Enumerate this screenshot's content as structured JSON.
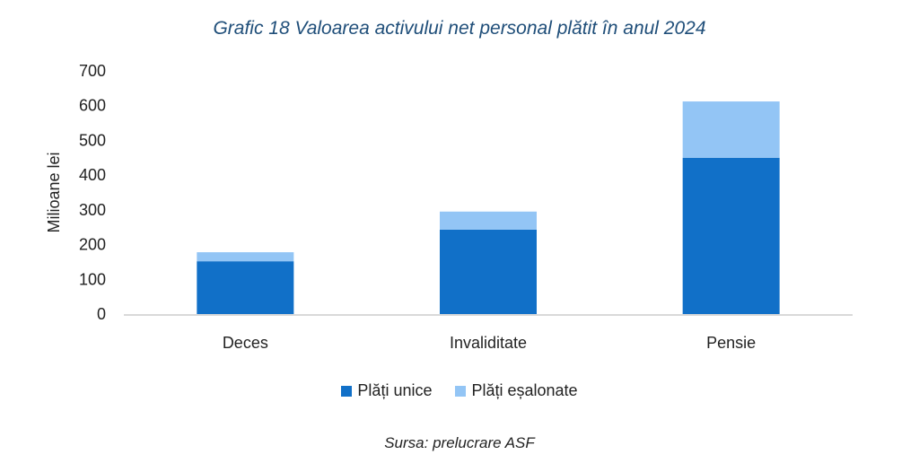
{
  "chart_data": {
    "type": "bar",
    "stacked": true,
    "title": "Grafic 18 Valoarea activului net personal plătit în anul 2024",
    "xlabel": "",
    "ylabel": "Milioane lei",
    "ylim": [
      0,
      700
    ],
    "yticks": [
      0,
      100,
      200,
      300,
      400,
      500,
      600,
      700
    ],
    "categories": [
      "Deces",
      "Invaliditate",
      "Pensie"
    ],
    "series": [
      {
        "name": "Plăți unice",
        "color": "#1170c8",
        "values": [
          152,
          243,
          450
        ]
      },
      {
        "name": "Plăți eșalonate",
        "color": "#93c5f5",
        "values": [
          26,
          52,
          162
        ]
      }
    ],
    "legend_position": "bottom",
    "grid": false,
    "source": "Sursa: prelucrare ASF"
  }
}
